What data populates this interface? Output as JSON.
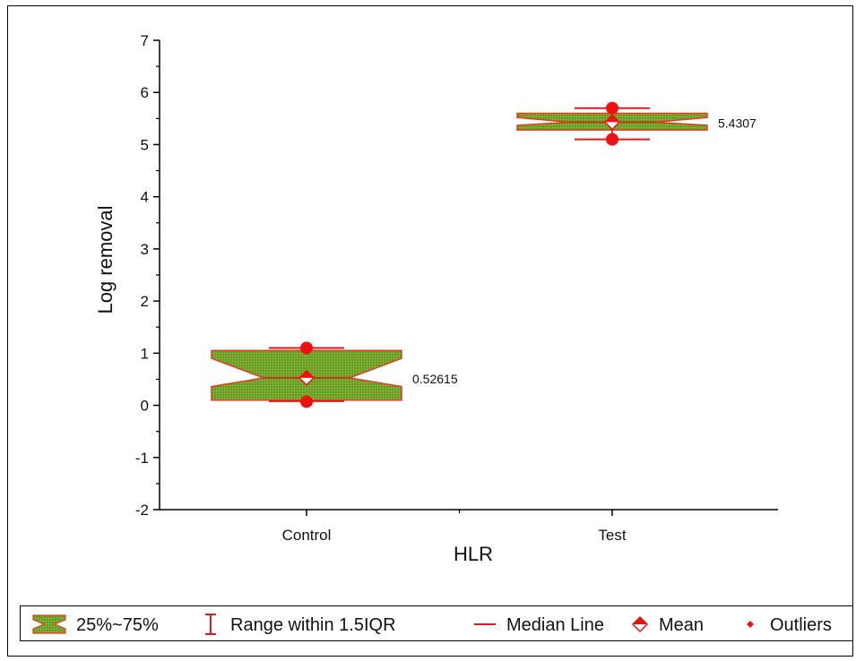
{
  "chart_data": {
    "type": "box",
    "xlabel": "HLR",
    "ylabel": "Log removal",
    "categories": [
      "Control",
      "Test"
    ],
    "ylim": [
      -2,
      7
    ],
    "yticks": [
      -2,
      -1,
      0,
      1,
      2,
      3,
      4,
      5,
      6,
      7
    ],
    "boxes": [
      {
        "category": "Control",
        "q1": 0.1,
        "q3": 1.05,
        "median": 0.52615,
        "notch_low": 0.36,
        "notch_high": 0.9,
        "whisker_low": 0.08,
        "whisker_high": 1.1,
        "mean": 0.52615,
        "outliers": [
          0.07,
          1.1
        ],
        "annotation": "0.52615"
      },
      {
        "category": "Test",
        "q1": 5.28,
        "q3": 5.6,
        "median": 5.4307,
        "notch_low": 5.37,
        "notch_high": 5.52,
        "whisker_low": 5.1,
        "whisker_high": 5.7,
        "mean": 5.4307,
        "outliers": [
          5.1,
          5.7
        ],
        "annotation": "5.4307"
      }
    ],
    "colors": {
      "box_fill": "#6a9e24",
      "box_edge": "#e8381e",
      "line": "#e01a1a",
      "marker": "#ee1111",
      "axis": "#000000"
    },
    "legend": {
      "placement": "bottom",
      "items": [
        {
          "symbol": "box",
          "label": "25%~75%"
        },
        {
          "symbol": "whisker",
          "label": "Range within 1.5IQR"
        },
        {
          "symbol": "line",
          "label": "Median Line"
        },
        {
          "symbol": "mean",
          "label": "Mean"
        },
        {
          "symbol": "outlier",
          "label": "Outliers"
        }
      ]
    }
  }
}
